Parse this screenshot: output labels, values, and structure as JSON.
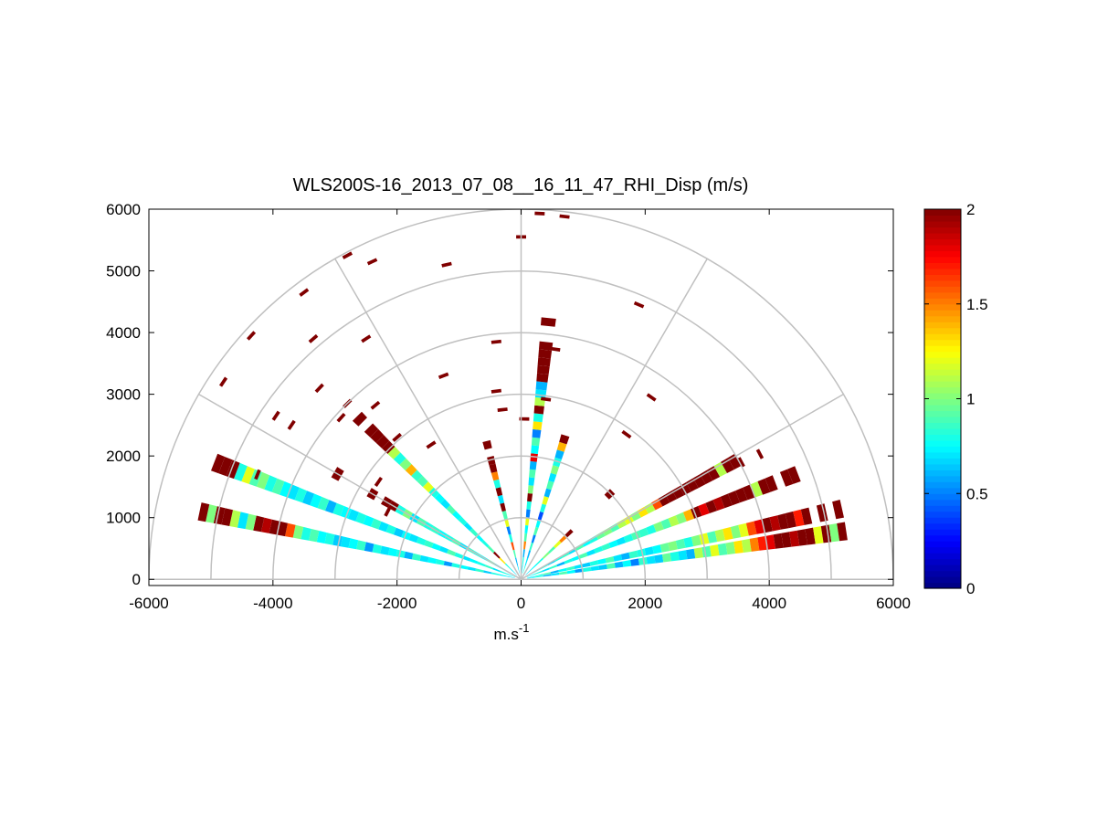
{
  "chart_data": {
    "type": "heatmap",
    "subtype": "polar-rhi-scan",
    "title": "WLS200S-16_2013_07_08__16_11_47_RHI_Disp (m/s)",
    "xlabel": "m.s",
    "xlabel_superscript": "-1",
    "ylabel": "",
    "xlim": [
      -6000,
      6000
    ],
    "ylim": [
      -100,
      6000
    ],
    "x_ticks": [
      -6000,
      -4000,
      -2000,
      0,
      2000,
      4000,
      6000
    ],
    "x_tick_labels": [
      "-6000",
      "-4000",
      "-2000",
      "0",
      "2000",
      "4000",
      "6000"
    ],
    "y_ticks": [
      0,
      1000,
      2000,
      3000,
      4000,
      5000,
      6000
    ],
    "y_tick_labels": [
      "0",
      "1000",
      "2000",
      "3000",
      "4000",
      "5000",
      "6000"
    ],
    "polar_grid": {
      "ring_radii": [
        1000,
        2000,
        3000,
        4000,
        5000,
        6000
      ],
      "spoke_angles_deg": [
        0,
        30,
        60,
        90,
        120,
        150,
        180
      ]
    },
    "colorbar": {
      "colormap": "jet",
      "range": [
        0,
        2
      ],
      "ticks": [
        0,
        0.5,
        1,
        1.5,
        2
      ],
      "tick_labels": [
        "0",
        "0.5",
        "1",
        "1.5",
        "2"
      ]
    },
    "colors": {
      "grid": "#c0c0c0",
      "saturated": "#800000"
    },
    "rays": [
      {
        "azimuth_deg": 8.5,
        "values": [
          0.75,
          0.8,
          0.6,
          0.7,
          0.9,
          0.75,
          0.55,
          0.8,
          0.7,
          0.65,
          0.9,
          0.6,
          0.75,
          0.5,
          0.85,
          0.7,
          0.65,
          0.95,
          0.8,
          0.7,
          0.6,
          1.1,
          0.9,
          1.2,
          0.9,
          1.0,
          1.3,
          1.1,
          1.5,
          1.7,
          1.8,
          2.0,
          2.0,
          1.9,
          2.0,
          2.0,
          1.2,
          2.0,
          1.0,
          2.0
        ]
      },
      {
        "azimuth_deg": 12.5,
        "values": [
          0.7,
          0.8,
          0.9,
          0.6,
          0.75,
          0.85,
          0.7,
          0.65,
          0.8,
          0.75,
          0.9,
          0.7,
          0.6,
          0.85,
          0.8,
          0.7,
          0.75,
          0.95,
          1.0,
          0.9,
          0.8,
          1.0,
          1.2,
          0.9,
          1.1,
          1.3,
          1.0,
          1.2,
          1.6,
          1.8,
          2.0,
          1.9,
          2.0,
          2.0,
          1.7,
          2.0,
          null,
          2.0,
          null,
          2.0
        ]
      },
      {
        "azimuth_deg": 21.0,
        "values": [
          0.75,
          0.8,
          0.7,
          0.85,
          0.6,
          0.8,
          0.75,
          0.9,
          0.7,
          0.8,
          0.85,
          0.75,
          0.7,
          0.8,
          0.9,
          0.85,
          0.8,
          1.0,
          0.9,
          1.1,
          1.0,
          1.4,
          2.0,
          1.8,
          2.0,
          1.9,
          2.0,
          2.0,
          2.0,
          2.0,
          1.1,
          2.0,
          2.0,
          null,
          2.0,
          2.0,
          null,
          null,
          null,
          null
        ]
      },
      {
        "azimuth_deg": 29.0,
        "values": [
          0.7,
          0.75,
          0.8,
          0.65,
          0.8,
          0.85,
          0.7,
          0.9,
          0.75,
          0.8,
          0.95,
          1.0,
          0.9,
          1.1,
          1.2,
          1.0,
          1.3,
          1.1,
          1.6,
          2.0,
          2.0,
          2.0,
          2.0,
          2.0,
          2.0,
          2.0,
          2.0,
          1.1,
          2.0,
          2.0,
          null,
          null,
          null,
          null,
          null,
          null,
          null,
          null,
          null,
          null
        ]
      },
      {
        "azimuth_deg": 44.0,
        "values": [
          0.7,
          0.75,
          0.8,
          1.0,
          0.9,
          1.2,
          1.5,
          2.0,
          null,
          null,
          null,
          null,
          null,
          null,
          2.0,
          null,
          null,
          null,
          null,
          null,
          null,
          null,
          null,
          null,
          null,
          null,
          null,
          null,
          null,
          null,
          null,
          null,
          null,
          null,
          null,
          null,
          null,
          null,
          null,
          null
        ]
      },
      {
        "azimuth_deg": 73.0,
        "values": [
          0.8,
          0.7,
          0.6,
          0.85,
          0.5,
          0.9,
          0.75,
          0.4,
          0.8,
          1.2,
          0.6,
          0.9,
          0.7,
          1.0,
          0.8,
          0.6,
          1.4,
          2.0,
          null,
          null,
          null,
          null,
          null,
          null,
          null,
          null,
          null,
          null,
          null,
          null,
          null,
          null,
          null,
          null,
          null,
          null,
          null,
          null,
          null,
          null
        ]
      },
      {
        "azimuth_deg": 84.0,
        "values": [
          0.7,
          0.8,
          0.6,
          1.5,
          0.9,
          0.75,
          1.2,
          0.5,
          0.8,
          2.0,
          1.0,
          0.7,
          0.9,
          0.6,
          1.8,
          0.75,
          0.9,
          0.5,
          1.3,
          0.8,
          2.0,
          1.1,
          0.7,
          0.6,
          2.0,
          2.0,
          2.0,
          2.0,
          2.0,
          null,
          null,
          2.0,
          null,
          null,
          null,
          null,
          null,
          null,
          null,
          null
        ]
      },
      {
        "azimuth_deg": 104.0,
        "values": [
          0.7,
          0.6,
          0.9,
          1.6,
          0.8,
          0.5,
          1.2,
          0.9,
          2.0,
          0.7,
          2.0,
          0.8,
          1.5,
          2.0,
          2.0,
          null,
          2.0,
          null,
          null,
          null,
          null,
          null,
          null,
          null,
          null,
          null,
          null,
          null,
          null,
          null,
          null,
          null,
          null,
          null,
          null,
          null,
          null,
          null,
          null,
          null
        ]
      },
      {
        "azimuth_deg": 135.0,
        "values": [
          0.7,
          0.8,
          1.3,
          2.0,
          0.9,
          0.8,
          0.75,
          0.85,
          0.7,
          0.8,
          0.75,
          0.9,
          0.7,
          0.75,
          0.8,
          1.2,
          0.9,
          0.85,
          1.4,
          1.0,
          0.8,
          1.1,
          2.0,
          2.0,
          2.0,
          2.0,
          null,
          2.0,
          null,
          null,
          null,
          null,
          null,
          null,
          null,
          null,
          null,
          null,
          null,
          null
        ]
      },
      {
        "azimuth_deg": 150.0,
        "values": [
          0.75,
          0.8,
          0.7,
          0.9,
          0.75,
          0.8,
          0.85,
          0.7,
          0.9,
          0.8,
          0.75,
          0.85,
          0.8,
          0.9,
          0.7,
          1.0,
          0.8,
          2.0,
          2.0,
          null,
          2.0,
          null,
          null,
          null,
          null,
          2.0,
          null,
          null,
          null,
          null,
          null,
          null,
          null,
          null,
          null,
          null,
          null,
          null,
          null,
          null
        ]
      },
      {
        "azimuth_deg": 159.0,
        "values": [
          0.75,
          0.8,
          0.7,
          0.85,
          0.8,
          0.75,
          0.7,
          0.8,
          0.9,
          0.7,
          0.75,
          0.85,
          0.8,
          0.7,
          0.75,
          0.65,
          0.8,
          0.7,
          0.85,
          0.75,
          0.8,
          0.7,
          0.75,
          0.8,
          0.6,
          0.85,
          0.75,
          0.65,
          0.8,
          0.7,
          0.75,
          0.9,
          0.8,
          1.0,
          0.9,
          1.2,
          0.8,
          2.0,
          2.0,
          2.0
        ]
      },
      {
        "azimuth_deg": 168.0,
        "values": [
          0.7,
          0.75,
          0.8,
          0.65,
          0.85,
          0.7,
          0.75,
          0.8,
          0.55,
          0.8,
          0.75,
          0.7,
          0.85,
          0.6,
          0.8,
          0.75,
          0.7,
          0.8,
          0.55,
          0.85,
          0.75,
          0.7,
          0.65,
          0.8,
          0.75,
          0.9,
          0.8,
          1.0,
          1.6,
          2.0,
          2.0,
          1.9,
          2.0,
          1.0,
          0.7,
          1.1,
          2.0,
          2.0,
          1.0,
          2.0
        ]
      }
    ],
    "scattered_cells": [
      {
        "x": 300,
        "y": 5930,
        "value": 2.0
      },
      {
        "x": 700,
        "y": 5880,
        "value": 2.0
      },
      {
        "x": 0,
        "y": 5550,
        "value": 2.0
      },
      {
        "x": -2800,
        "y": 5250,
        "value": 2.0
      },
      {
        "x": -2400,
        "y": 5150,
        "value": 2.0
      },
      {
        "x": -1200,
        "y": 5100,
        "value": 2.0
      },
      {
        "x": -3500,
        "y": 4650,
        "value": 2.0
      },
      {
        "x": 1900,
        "y": 4450,
        "value": 2.0
      },
      {
        "x": -4350,
        "y": 3950,
        "value": 2.0
      },
      {
        "x": -3350,
        "y": 3900,
        "value": 2.0
      },
      {
        "x": -2500,
        "y": 3900,
        "value": 2.0
      },
      {
        "x": -400,
        "y": 3850,
        "value": 2.0
      },
      {
        "x": 550,
        "y": 3730,
        "value": 2.0
      },
      {
        "x": -4800,
        "y": 3200,
        "value": 2.0
      },
      {
        "x": -1250,
        "y": 3300,
        "value": 2.0
      },
      {
        "x": -3250,
        "y": 3100,
        "value": 2.0
      },
      {
        "x": -400,
        "y": 3050,
        "value": 2.0
      },
      {
        "x": 2100,
        "y": 2950,
        "value": 2.0
      },
      {
        "x": -2800,
        "y": 2850,
        "value": 2.0
      },
      {
        "x": -2350,
        "y": 2820,
        "value": 2.0
      },
      {
        "x": 400,
        "y": 2920,
        "value": 2.0
      },
      {
        "x": -300,
        "y": 2750,
        "value": 2.0
      },
      {
        "x": -3950,
        "y": 2650,
        "value": 2.0
      },
      {
        "x": -2900,
        "y": 2620,
        "value": 2.0
      },
      {
        "x": 50,
        "y": 2600,
        "value": 2.0
      },
      {
        "x": -3700,
        "y": 2500,
        "value": 2.0
      },
      {
        "x": -2000,
        "y": 2300,
        "value": 2.0
      },
      {
        "x": -1450,
        "y": 2180,
        "value": 2.0
      },
      {
        "x": 1700,
        "y": 2350,
        "value": 2.0
      },
      {
        "x": -2300,
        "y": 1580,
        "value": 2.0
      },
      {
        "x": -2150,
        "y": 1100,
        "value": 2.0
      },
      {
        "x": -4250,
        "y": 1700,
        "value": 2.0
      },
      {
        "x": 3850,
        "y": 2030,
        "value": 2.0
      },
      {
        "x": 3550,
        "y": 1900,
        "value": 2.0
      }
    ]
  }
}
